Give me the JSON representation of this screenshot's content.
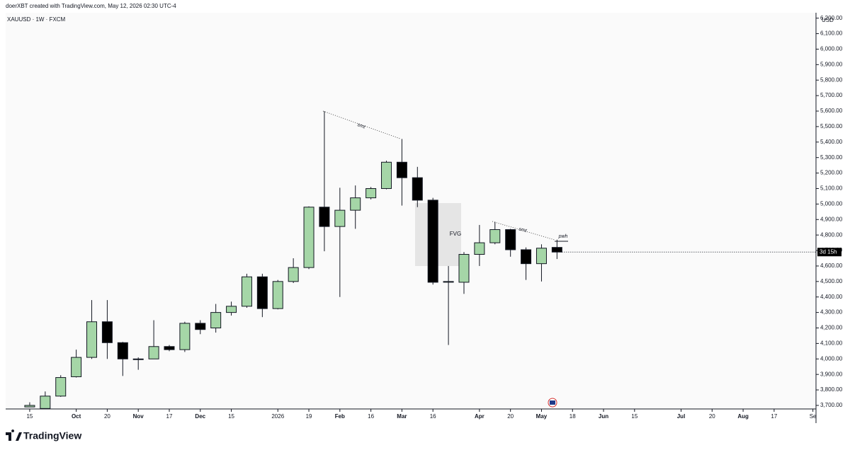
{
  "header": {
    "credit": "doerXBT created with TradingView.com, May 12, 2026 02:30 UTC-4"
  },
  "footer": {
    "brand": "TradingView"
  },
  "chart_data": {
    "type": "candlestick",
    "title": "XAUUSD · 1W · FXCM",
    "y_unit": "USD",
    "up_color": "#a5d6a7",
    "down_color": "#000000",
    "open": [
      3690,
      3680,
      3760,
      3885,
      4010,
      4240,
      4105,
      4000,
      4000,
      4080,
      4060,
      4230,
      4200,
      4300,
      4340,
      4530,
      4325,
      4500,
      4590,
      4980,
      4855,
      4960,
      5040,
      5100,
      5270,
      5170,
      5025,
      4495,
      4495,
      4675,
      4750,
      4835,
      4705,
      4615,
      4720
    ],
    "high": [
      3720,
      3790,
      3895,
      4060,
      4380,
      4380,
      4110,
      4010,
      4250,
      4090,
      4240,
      4250,
      4355,
      4370,
      4550,
      4550,
      4510,
      4650,
      4985,
      5600,
      5105,
      5120,
      5110,
      5280,
      5420,
      5240,
      5040,
      4600,
      4690,
      4865,
      4885,
      4840,
      4720,
      4740,
      4770
    ],
    "low": [
      3690,
      3675,
      3755,
      3880,
      4000,
      4000,
      3890,
      3930,
      4000,
      4050,
      4045,
      4160,
      4170,
      4280,
      4330,
      4270,
      4320,
      4490,
      4580,
      4695,
      4400,
      4840,
      5030,
      5095,
      4990,
      4980,
      4480,
      4090,
      4420,
      4600,
      4740,
      4660,
      4510,
      4500,
      4645
    ],
    "close": [
      3700,
      3760,
      3880,
      4010,
      4240,
      4105,
      4000,
      3998,
      4080,
      4060,
      4230,
      4190,
      4300,
      4340,
      4530,
      4325,
      4500,
      4590,
      4980,
      4855,
      4960,
      5040,
      5100,
      5270,
      5170,
      5025,
      4495,
      4500,
      4675,
      4750,
      4835,
      4705,
      4615,
      4715,
      4690
    ],
    "xlim": [
      -1.55,
      50.7
    ],
    "xticks": [
      {
        "value": 0,
        "label": "15"
      },
      {
        "value": 3,
        "label": "Oct"
      },
      {
        "value": 5,
        "label": "20"
      },
      {
        "value": 7,
        "label": "Nov"
      },
      {
        "value": 9,
        "label": "17"
      },
      {
        "value": 11,
        "label": "Dec"
      },
      {
        "value": 13,
        "label": "15"
      },
      {
        "value": 16,
        "label": "2026"
      },
      {
        "value": 18,
        "label": "19"
      },
      {
        "value": 20,
        "label": "Feb"
      },
      {
        "value": 22,
        "label": "16"
      },
      {
        "value": 24,
        "label": "Mar"
      },
      {
        "value": 26,
        "label": "16"
      },
      {
        "value": 29,
        "label": "Apr"
      },
      {
        "value": 31,
        "label": "20"
      },
      {
        "value": 33,
        "label": "May"
      },
      {
        "value": 35,
        "label": "18"
      },
      {
        "value": 37,
        "label": "Jun"
      },
      {
        "value": 39,
        "label": "15"
      },
      {
        "value": 42,
        "label": "Jul"
      },
      {
        "value": 44,
        "label": "20"
      },
      {
        "value": 46,
        "label": "Aug"
      },
      {
        "value": 48,
        "label": "17"
      },
      {
        "value": 50.5,
        "label": "Se"
      }
    ],
    "ylim": [
      3677,
      6235
    ],
    "yticks": [
      {
        "value": 3700,
        "label": "3,700.00"
      },
      {
        "value": 3800,
        "label": "3,800.00"
      },
      {
        "value": 3900,
        "label": "3,900.00"
      },
      {
        "value": 4000,
        "label": "4,000.00"
      },
      {
        "value": 4100,
        "label": "4,100.00"
      },
      {
        "value": 4200,
        "label": "4,200.00"
      },
      {
        "value": 4300,
        "label": "4,300.00"
      },
      {
        "value": 4400,
        "label": "4,400.00"
      },
      {
        "value": 4500,
        "label": "4,500.00"
      },
      {
        "value": 4600,
        "label": "4,600.00"
      },
      {
        "value": 4700,
        "label": "4,700.00"
      },
      {
        "value": 4800,
        "label": "4,800.00"
      },
      {
        "value": 4900,
        "label": "4,900.00"
      },
      {
        "value": 5000,
        "label": "5,000.00"
      },
      {
        "value": 5100,
        "label": "5,100.00"
      },
      {
        "value": 5200,
        "label": "5,200.00"
      },
      {
        "value": 5300,
        "label": "5,300.00"
      },
      {
        "value": 5400,
        "label": "5,400.00"
      },
      {
        "value": 5500,
        "label": "5,500.00"
      },
      {
        "value": 5600,
        "label": "5,600.00"
      },
      {
        "value": 5700,
        "label": "5,700.00"
      },
      {
        "value": 5800,
        "label": "5,800.00"
      },
      {
        "value": 5900,
        "label": "5,900.00"
      },
      {
        "value": 6000,
        "label": "6,000.00"
      },
      {
        "value": 6100,
        "label": "6,100.00"
      },
      {
        "value": 6200,
        "label": "6,200.00"
      }
    ],
    "countdown": "3d 15h",
    "annotations": [
      "smt",
      "smt",
      "FVG",
      "pwh"
    ]
  }
}
